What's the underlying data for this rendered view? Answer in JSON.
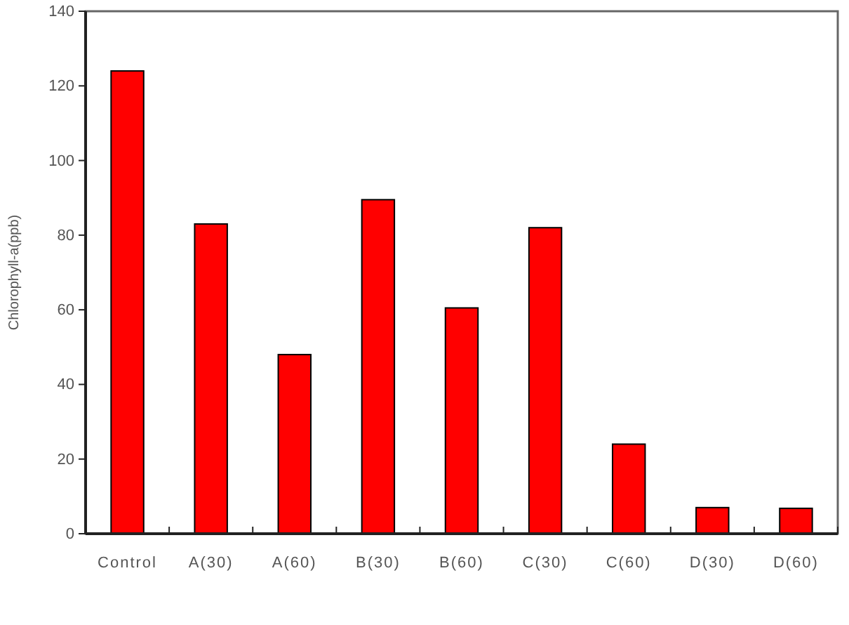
{
  "chart_data": {
    "type": "bar",
    "categories": [
      "Control",
      "A(30)",
      "A(60)",
      "B(30)",
      "B(60)",
      "C(30)",
      "C(60)",
      "D(30)",
      "D(60)"
    ],
    "values": [
      124,
      83,
      48,
      89.5,
      60.5,
      82,
      24,
      7,
      6.8
    ],
    "color": "#ff0000",
    "ylabel": "Chlorophyll-a(ppb)",
    "ylim": [
      0,
      140
    ],
    "yticks": [
      0,
      20,
      40,
      60,
      80,
      100,
      120,
      140
    ]
  }
}
